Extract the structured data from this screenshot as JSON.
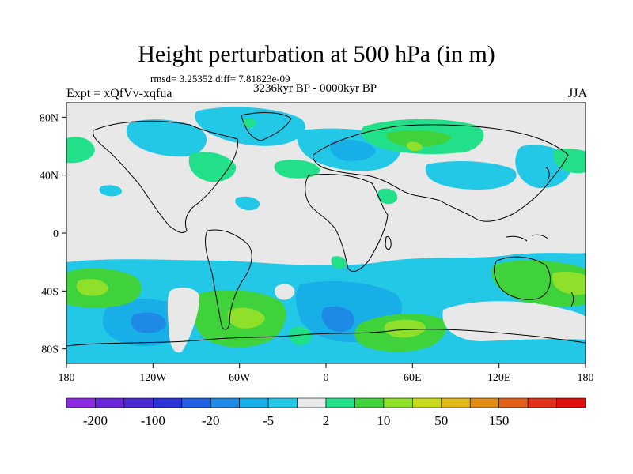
{
  "header": {
    "title": "Height perturbation at 500 hPa (in m)",
    "stats": "rmsd= 3.25352 diff= 7.81823e-09",
    "experiment": "Expt = xQfVv-xqfua",
    "period": "3236kyr BP - 0000kyr BP",
    "season": "JJA"
  },
  "map": {
    "projection": "cylindrical-equidistant",
    "lon_range": [
      -180,
      180
    ],
    "lat_range": [
      -90,
      90
    ],
    "lon_ticks": [
      {
        "value": -180,
        "label": "180"
      },
      {
        "value": -120,
        "label": "120W"
      },
      {
        "value": -60,
        "label": "60W"
      },
      {
        "value": 0,
        "label": "0"
      },
      {
        "value": 60,
        "label": "60E"
      },
      {
        "value": 120,
        "label": "120E"
      },
      {
        "value": 180,
        "label": "180"
      }
    ],
    "lat_ticks": [
      {
        "value": 80,
        "label": "80N"
      },
      {
        "value": 40,
        "label": "40N"
      },
      {
        "value": 0,
        "label": "0"
      },
      {
        "value": -40,
        "label": "40S"
      },
      {
        "value": -80,
        "label": "80S"
      }
    ],
    "background_color": "#e8e8e8"
  },
  "colorbar": {
    "colors": [
      "#8a2be2",
      "#6a28d8",
      "#4b2bd0",
      "#2b35d6",
      "#1f5fe0",
      "#1e8ae6",
      "#18aee8",
      "#22c8e6",
      "#e8e8e8",
      "#22e08a",
      "#3fd23a",
      "#8ee02a",
      "#c8d81a",
      "#e0b81a",
      "#e08c14",
      "#e0601a",
      "#e0321a",
      "#e01010"
    ],
    "labels": [
      {
        "index": 1,
        "label": "-200"
      },
      {
        "index": 3,
        "label": "-100"
      },
      {
        "index": 5,
        "label": "-20"
      },
      {
        "index": 7,
        "label": "-5"
      },
      {
        "index": 9,
        "label": "2"
      },
      {
        "index": 11,
        "label": "10"
      },
      {
        "index": 13,
        "label": "50"
      },
      {
        "index": 15,
        "label": "150"
      }
    ]
  }
}
